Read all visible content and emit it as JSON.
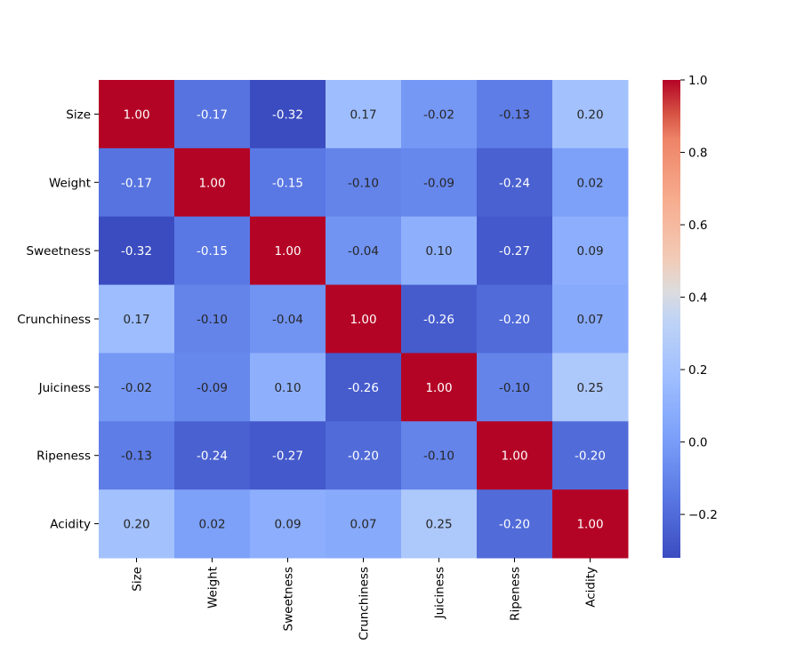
{
  "chart_data": {
    "type": "heatmap",
    "title": "",
    "xlabel": "",
    "ylabel": "",
    "labels": [
      "Size",
      "Weight",
      "Sweetness",
      "Crunchiness",
      "Juiciness",
      "Ripeness",
      "Acidity"
    ],
    "matrix": [
      [
        1.0,
        -0.17,
        -0.32,
        0.17,
        -0.02,
        -0.13,
        0.2
      ],
      [
        -0.17,
        1.0,
        -0.15,
        -0.1,
        -0.09,
        -0.24,
        0.02
      ],
      [
        -0.32,
        -0.15,
        1.0,
        -0.04,
        0.1,
        -0.27,
        0.09
      ],
      [
        0.17,
        -0.1,
        -0.04,
        1.0,
        -0.26,
        -0.2,
        0.07
      ],
      [
        -0.02,
        -0.09,
        0.1,
        -0.26,
        1.0,
        -0.1,
        0.25
      ],
      [
        -0.13,
        -0.24,
        -0.27,
        -0.2,
        -0.1,
        1.0,
        -0.2
      ],
      [
        0.2,
        0.02,
        0.09,
        0.07,
        0.25,
        -0.2,
        1.0
      ]
    ],
    "value_format": "2 decimals",
    "colormap": "coolwarm",
    "vmin": -0.32,
    "vmax": 1.0,
    "colorbar_ticks": [
      1.0,
      0.8,
      0.6,
      0.4,
      0.2,
      0.0,
      -0.2
    ],
    "colorbar_tick_labels": [
      "1.0",
      "0.8",
      "0.6",
      "0.4",
      "0.2",
      "0.0",
      "−0.2"
    ]
  }
}
